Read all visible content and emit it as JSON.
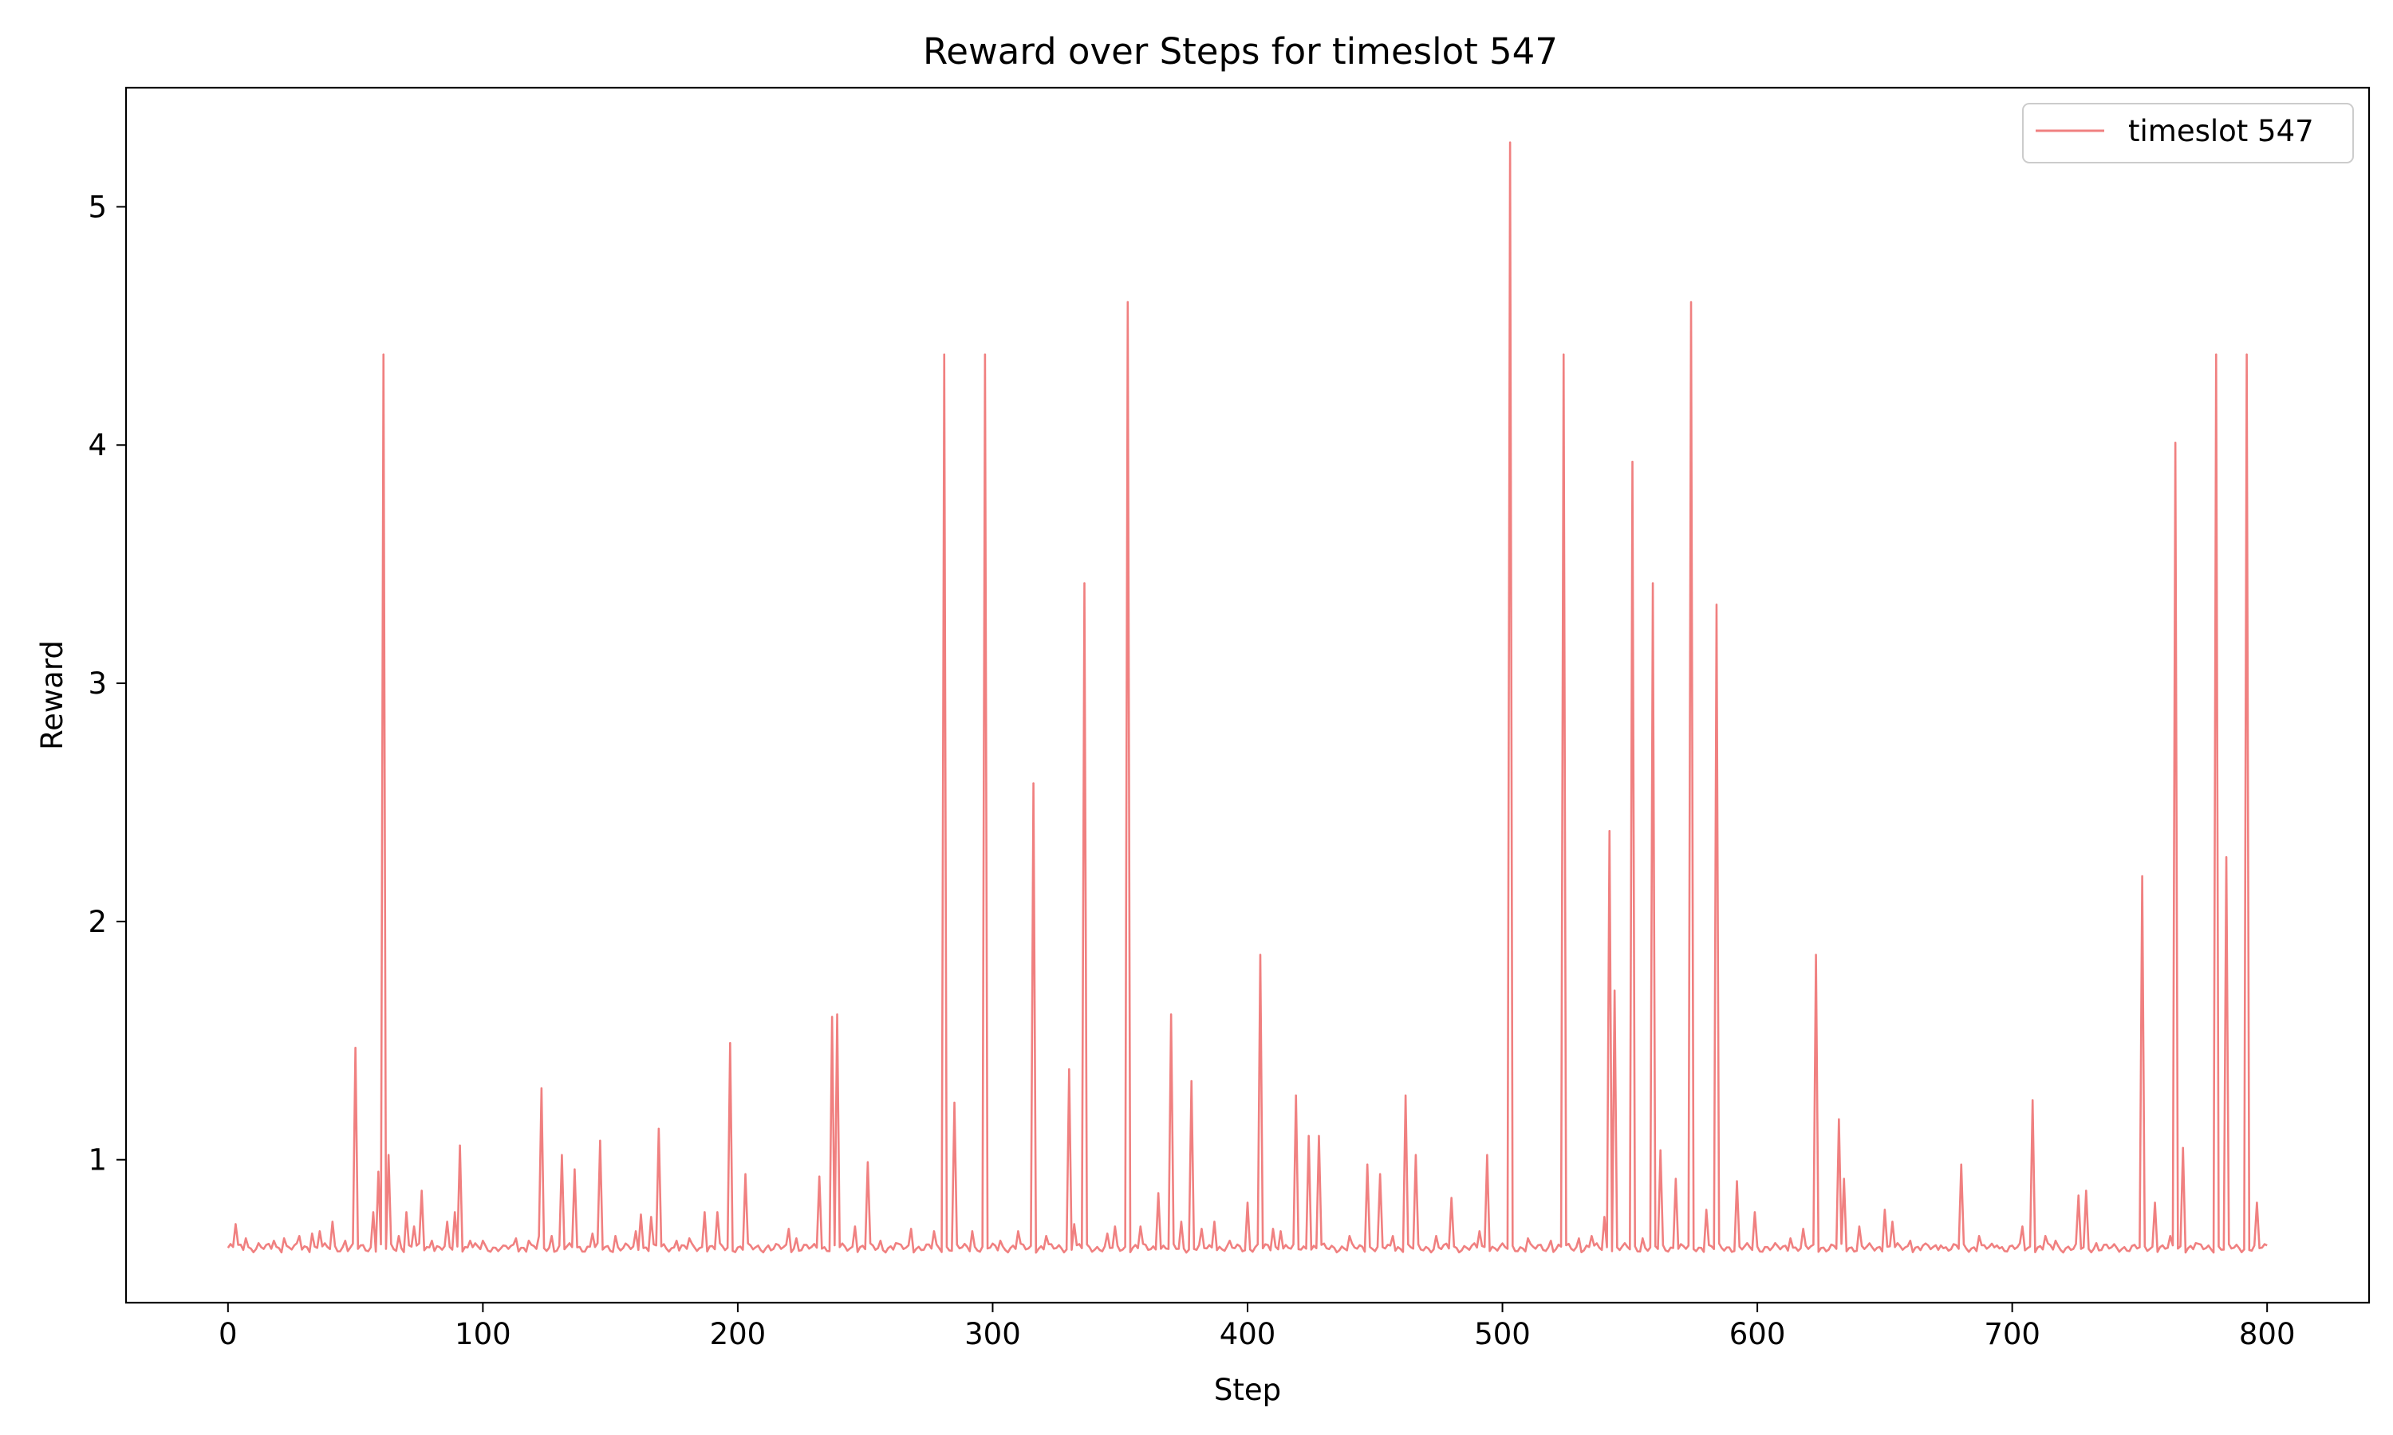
{
  "chart_data": {
    "type": "line",
    "title": "Reward over Steps for timeslot 547",
    "xlabel": "Step",
    "ylabel": "Reward",
    "xlim": [
      -40,
      840
    ],
    "ylim": [
      0.4,
      5.5
    ],
    "xticks": [
      0,
      100,
      200,
      300,
      400,
      500,
      600,
      700,
      800
    ],
    "yticks": [
      1,
      2,
      3,
      4,
      5
    ],
    "grid": false,
    "legend_position": "top-right",
    "baseline": 0.63,
    "series": [
      {
        "name": "timeslot 547",
        "color": "#f08080",
        "n_steps": 801,
        "spikes": [
          [
            3,
            0.73
          ],
          [
            7,
            0.67
          ],
          [
            12,
            0.65
          ],
          [
            18,
            0.66
          ],
          [
            22,
            0.67
          ],
          [
            28,
            0.68
          ],
          [
            33,
            0.69
          ],
          [
            36,
            0.7
          ],
          [
            41,
            0.74
          ],
          [
            46,
            0.66
          ],
          [
            50,
            1.47
          ],
          [
            57,
            0.78
          ],
          [
            59,
            0.95
          ],
          [
            61,
            4.38
          ],
          [
            63,
            1.02
          ],
          [
            67,
            0.68
          ],
          [
            70,
            0.78
          ],
          [
            73,
            0.72
          ],
          [
            76,
            0.87
          ],
          [
            80,
            0.66
          ],
          [
            86,
            0.74
          ],
          [
            89,
            0.78
          ],
          [
            91,
            1.06
          ],
          [
            95,
            0.66
          ],
          [
            100,
            0.66
          ],
          [
            108,
            0.64
          ],
          [
            113,
            0.67
          ],
          [
            118,
            0.66
          ],
          [
            122,
            0.68
          ],
          [
            123,
            1.3
          ],
          [
            127,
            0.68
          ],
          [
            131,
            1.02
          ],
          [
            136,
            0.96
          ],
          [
            143,
            0.69
          ],
          [
            146,
            1.08
          ],
          [
            152,
            0.68
          ],
          [
            160,
            0.7
          ],
          [
            162,
            0.77
          ],
          [
            166,
            0.76
          ],
          [
            169,
            1.13
          ],
          [
            176,
            0.66
          ],
          [
            181,
            0.67
          ],
          [
            187,
            0.78
          ],
          [
            192,
            0.78
          ],
          [
            197,
            1.49
          ],
          [
            203,
            0.94
          ],
          [
            212,
            0.64
          ],
          [
            220,
            0.71
          ],
          [
            223,
            0.67
          ],
          [
            232,
            0.93
          ],
          [
            237,
            1.6
          ],
          [
            239,
            1.61
          ],
          [
            246,
            0.72
          ],
          [
            251,
            0.99
          ],
          [
            256,
            0.66
          ],
          [
            262,
            0.65
          ],
          [
            268,
            0.71
          ],
          [
            277,
            0.7
          ],
          [
            281,
            4.38
          ],
          [
            285,
            1.24
          ],
          [
            292,
            0.7
          ],
          [
            297,
            4.38
          ],
          [
            303,
            0.66
          ],
          [
            310,
            0.7
          ],
          [
            316,
            2.58
          ],
          [
            321,
            0.68
          ],
          [
            330,
            1.38
          ],
          [
            332,
            0.73
          ],
          [
            336,
            3.42
          ],
          [
            345,
            0.69
          ],
          [
            348,
            0.72
          ],
          [
            353,
            4.6
          ],
          [
            358,
            0.72
          ],
          [
            365,
            0.86
          ],
          [
            370,
            1.61
          ],
          [
            374,
            0.74
          ],
          [
            378,
            1.33
          ],
          [
            382,
            0.71
          ],
          [
            387,
            0.74
          ],
          [
            393,
            0.66
          ],
          [
            400,
            0.82
          ],
          [
            405,
            1.86
          ],
          [
            410,
            0.71
          ],
          [
            413,
            0.7
          ],
          [
            419,
            1.27
          ],
          [
            424,
            1.1
          ],
          [
            428,
            1.1
          ],
          [
            440,
            0.68
          ],
          [
            447,
            0.98
          ],
          [
            452,
            0.94
          ],
          [
            457,
            0.68
          ],
          [
            462,
            1.27
          ],
          [
            466,
            1.02
          ],
          [
            474,
            0.68
          ],
          [
            480,
            0.84
          ],
          [
            491,
            0.7
          ],
          [
            494,
            1.02
          ],
          [
            503,
            5.27
          ],
          [
            510,
            0.67
          ],
          [
            519,
            0.66
          ],
          [
            524,
            4.38
          ],
          [
            530,
            0.67
          ],
          [
            535,
            0.68
          ],
          [
            540,
            0.76
          ],
          [
            542,
            2.38
          ],
          [
            544,
            1.71
          ],
          [
            551,
            3.93
          ],
          [
            555,
            0.67
          ],
          [
            559,
            3.42
          ],
          [
            562,
            1.04
          ],
          [
            568,
            0.92
          ],
          [
            574,
            4.6
          ],
          [
            580,
            0.79
          ],
          [
            584,
            3.33
          ],
          [
            592,
            0.91
          ],
          [
            599,
            0.78
          ],
          [
            607,
            0.65
          ],
          [
            613,
            0.67
          ],
          [
            618,
            0.71
          ],
          [
            623,
            1.86
          ],
          [
            632,
            1.17
          ],
          [
            634,
            0.92
          ],
          [
            640,
            0.72
          ],
          [
            650,
            0.79
          ],
          [
            653,
            0.74
          ],
          [
            660,
            0.66
          ],
          [
            665,
            0.64
          ],
          [
            672,
            0.64
          ],
          [
            680,
            0.98
          ],
          [
            687,
            0.68
          ],
          [
            694,
            0.64
          ],
          [
            704,
            0.72
          ],
          [
            708,
            1.25
          ],
          [
            713,
            0.68
          ],
          [
            717,
            0.66
          ],
          [
            726,
            0.85
          ],
          [
            729,
            0.87
          ],
          [
            733,
            0.65
          ],
          [
            751,
            2.19
          ],
          [
            756,
            0.82
          ],
          [
            762,
            0.68
          ],
          [
            764,
            4.01
          ],
          [
            767,
            1.05
          ],
          [
            772,
            0.65
          ],
          [
            780,
            4.38
          ],
          [
            784,
            2.27
          ],
          [
            792,
            4.38
          ],
          [
            796,
            0.82
          ],
          [
            800,
            0.64
          ]
        ]
      }
    ]
  }
}
